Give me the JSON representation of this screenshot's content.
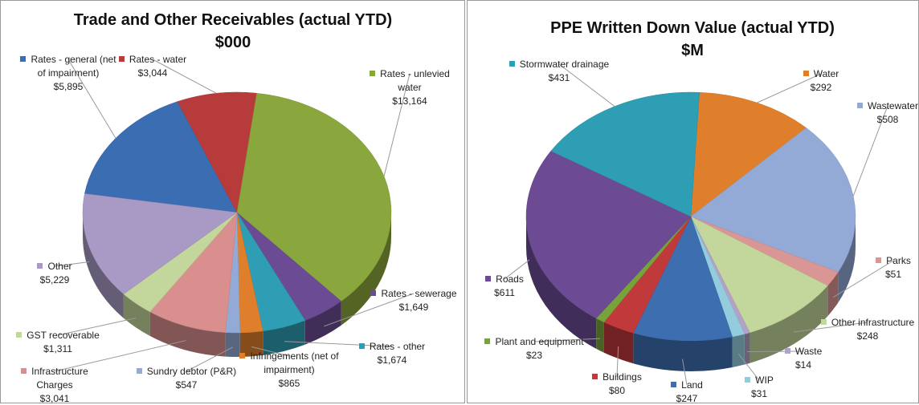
{
  "chart_data": [
    {
      "type": "pie",
      "title": "Trade and Other Receivables (actual YTD)",
      "subtitle": "$000",
      "categories": [
        "Rates - general (net of impairment)",
        "Rates - water",
        "Rates - unlevied water",
        "Rates - sewerage",
        "Rates - other",
        "Infringements (net of impairment)",
        "Sundry debtor (P&R)",
        "Infrastructure Charges",
        "GST recoverable",
        "Other"
      ],
      "values": [
        5895,
        3044,
        13164,
        1649,
        1674,
        865,
        547,
        3041,
        1311,
        5229
      ],
      "value_labels": [
        "$5,895",
        "$3,044",
        "$13,164",
        "$1,649",
        "$1,674",
        "$865",
        "$547",
        "$3,041",
        "$1,311",
        "$5,229"
      ],
      "colors": [
        "#3b6db3",
        "#b83b3c",
        "#8aa73d",
        "#6b4b93",
        "#2f9db3",
        "#e07f2b",
        "#93aad6",
        "#d98f8e",
        "#c3d69b",
        "#a899c5"
      ]
    },
    {
      "type": "pie",
      "title": "PPE Written Down Value (actual YTD)",
      "subtitle": "$M",
      "categories": [
        "Water",
        "Wastewater",
        "Parks",
        "Other infrastructure",
        "Waste",
        "WIP",
        "Land",
        "Buildings",
        "Plant and equipment",
        "Roads",
        "Stormwater drainage"
      ],
      "values": [
        292,
        508,
        51,
        248,
        14,
        31,
        247,
        80,
        23,
        611,
        431
      ],
      "value_labels": [
        "$292",
        "$508",
        "$51",
        "$248",
        "$14",
        "$31",
        "$247",
        "$80",
        "$23",
        "$611",
        "$431"
      ],
      "colors": [
        "#e07f2b",
        "#93a9d6",
        "#da9694",
        "#c3d69b",
        "#b3a2c7",
        "#93cddd",
        "#3c6eb0",
        "#c0393b",
        "#77a33a",
        "#6d4b94",
        "#2e9eb5"
      ]
    }
  ]
}
